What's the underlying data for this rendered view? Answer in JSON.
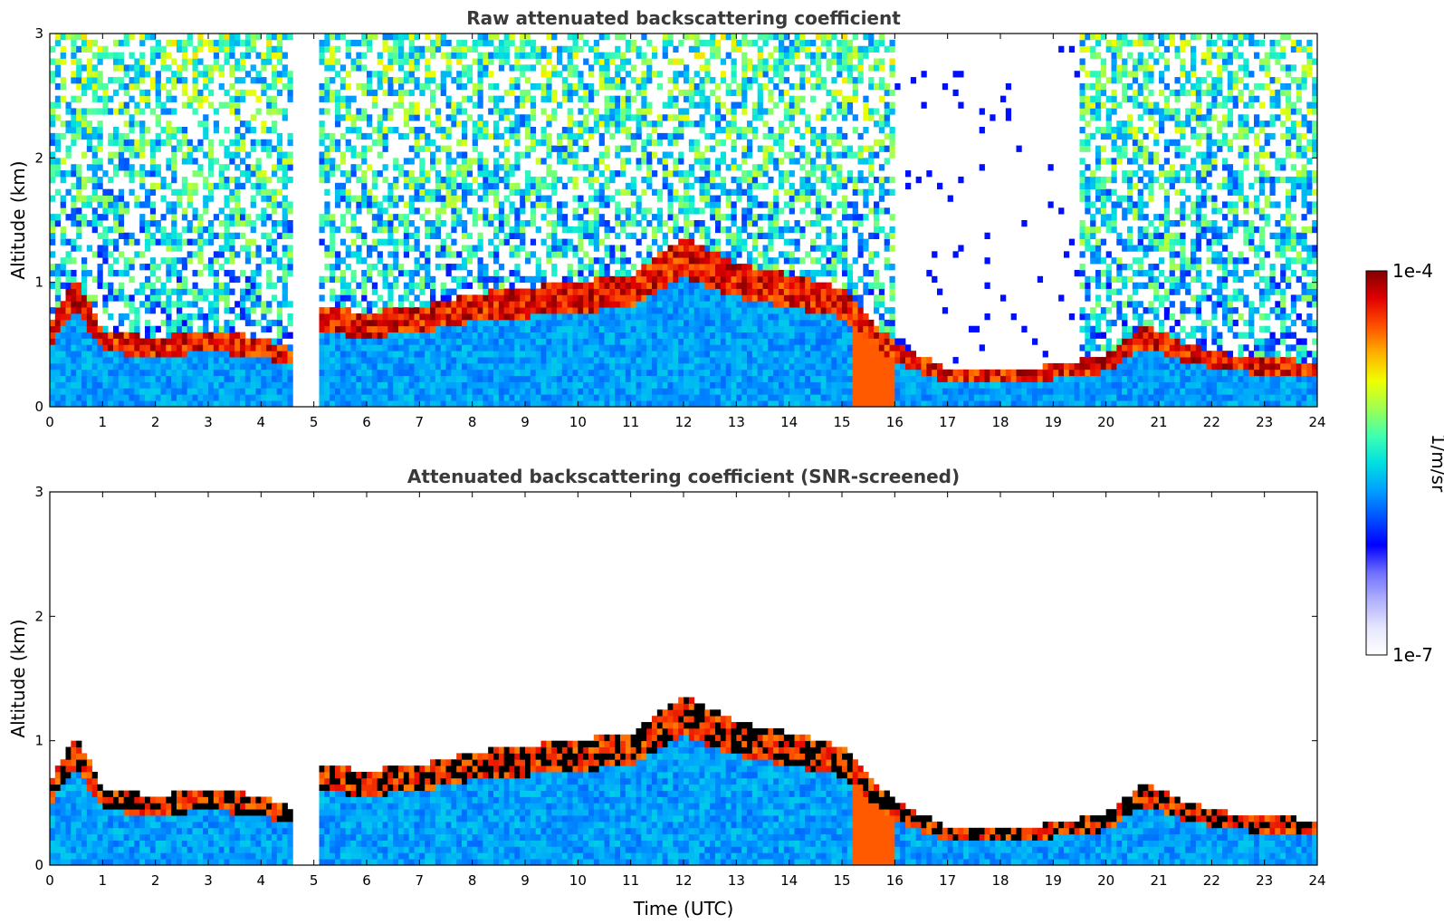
{
  "chart_data": [
    {
      "type": "heatmap",
      "title": "Raw attenuated backscattering coefficient",
      "xlabel": "",
      "ylabel": "Altitude (km)",
      "xlim": [
        0,
        24
      ],
      "ylim": [
        0,
        3
      ],
      "xticks": [
        "0",
        "1",
        "2",
        "3",
        "4",
        "5",
        "6",
        "7",
        "8",
        "9",
        "10",
        "11",
        "12",
        "13",
        "14",
        "15",
        "16",
        "17",
        "18",
        "19",
        "20",
        "21",
        "22",
        "23",
        "24"
      ],
      "yticks": [
        "0",
        "1",
        "2",
        "3"
      ],
      "data_gap": [
        4.6,
        5.05
      ],
      "boundary_layer_top_km": [
        [
          0.0,
          0.6
        ],
        [
          0.5,
          1.0
        ],
        [
          1.0,
          0.55
        ],
        [
          2.0,
          0.5
        ],
        [
          3.0,
          0.55
        ],
        [
          4.0,
          0.5
        ],
        [
          4.6,
          0.4
        ],
        [
          5.05,
          0.75
        ],
        [
          6.0,
          0.7
        ],
        [
          7.0,
          0.75
        ],
        [
          8.0,
          0.85
        ],
        [
          9.0,
          0.9
        ],
        [
          10.0,
          0.95
        ],
        [
          11.0,
          1.0
        ],
        [
          12.0,
          1.3
        ],
        [
          13.0,
          1.1
        ],
        [
          14.0,
          1.0
        ],
        [
          15.0,
          0.9
        ],
        [
          16.0,
          0.45
        ],
        [
          17.0,
          0.25
        ],
        [
          18.0,
          0.22
        ],
        [
          19.0,
          0.28
        ],
        [
          20.0,
          0.35
        ],
        [
          20.7,
          0.6
        ],
        [
          21.5,
          0.45
        ],
        [
          22.5,
          0.35
        ],
        [
          24.0,
          0.3
        ]
      ]
    },
    {
      "type": "heatmap",
      "title": "Attenuated backscattering coefficient (SNR-screened)",
      "xlabel": "Time (UTC)",
      "ylabel": "Altitude (km)",
      "xlim": [
        0,
        24
      ],
      "ylim": [
        0,
        3
      ],
      "xticks": [
        "0",
        "1",
        "2",
        "3",
        "4",
        "5",
        "6",
        "7",
        "8",
        "9",
        "10",
        "11",
        "12",
        "13",
        "14",
        "15",
        "16",
        "17",
        "18",
        "19",
        "20",
        "21",
        "22",
        "23",
        "24"
      ],
      "yticks": [
        "0",
        "1",
        "2",
        "3"
      ],
      "data_gap": [
        4.6,
        5.05
      ]
    }
  ],
  "colorbar": {
    "label": "1/m/sr",
    "min_label": "1e-7",
    "max_label": "1e-4",
    "colors": [
      "#ffffff",
      "#e6e6ff",
      "#b0b0ff",
      "#7070ff",
      "#0000ff",
      "#0050ff",
      "#00a0ff",
      "#00e0e0",
      "#40ffb0",
      "#a0ff50",
      "#f0ff00",
      "#ffb000",
      "#ff5000",
      "#e00000",
      "#800000"
    ]
  }
}
